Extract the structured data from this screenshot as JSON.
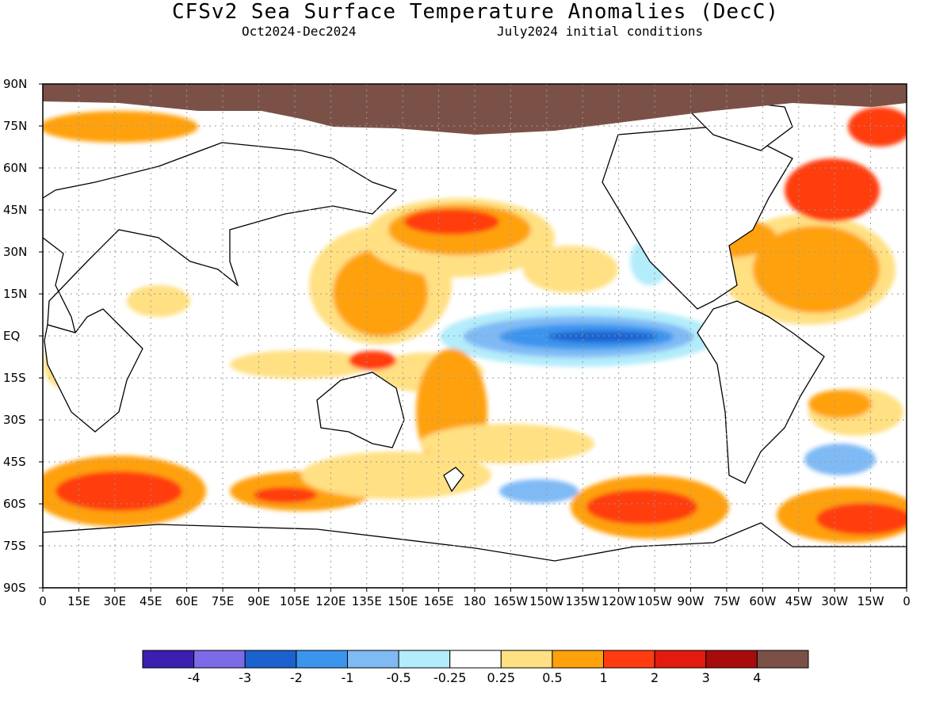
{
  "header": {
    "title": "CFSv2 Sea Surface Temperature Anomalies (DecC)",
    "period": "Oct2024-Dec2024",
    "init": "July2024 initial conditions"
  },
  "map": {
    "lat_labels": [
      "90N",
      "75N",
      "60N",
      "45N",
      "30N",
      "15N",
      "EQ",
      "15S",
      "30S",
      "45S",
      "60S",
      "75S",
      "90S"
    ],
    "lon_labels": [
      "0",
      "15E",
      "30E",
      "45E",
      "60E",
      "75E",
      "90E",
      "105E",
      "120E",
      "135E",
      "150E",
      "165E",
      "180",
      "165W",
      "150W",
      "135W",
      "120W",
      "105W",
      "90W",
      "75W",
      "60W",
      "45W",
      "30W",
      "15W",
      "0"
    ],
    "land_color": "#ffffff",
    "sea_ice_color": "#7b5147"
  },
  "colorbar": {
    "colors": [
      "#3a1fb0",
      "#7c6be8",
      "#1c62cf",
      "#3b95ee",
      "#7fbaf5",
      "#b3ecfa",
      "#ffffff",
      "#ffe082",
      "#ffa10a",
      "#ff3c10",
      "#e31a0e",
      "#a80b0b",
      "#7b5147"
    ],
    "labels": [
      "-4",
      "-3",
      "-2",
      "-1",
      "-0.5",
      "-0.25",
      "0.25",
      "0.5",
      "1",
      "2",
      "3",
      "4"
    ]
  }
}
